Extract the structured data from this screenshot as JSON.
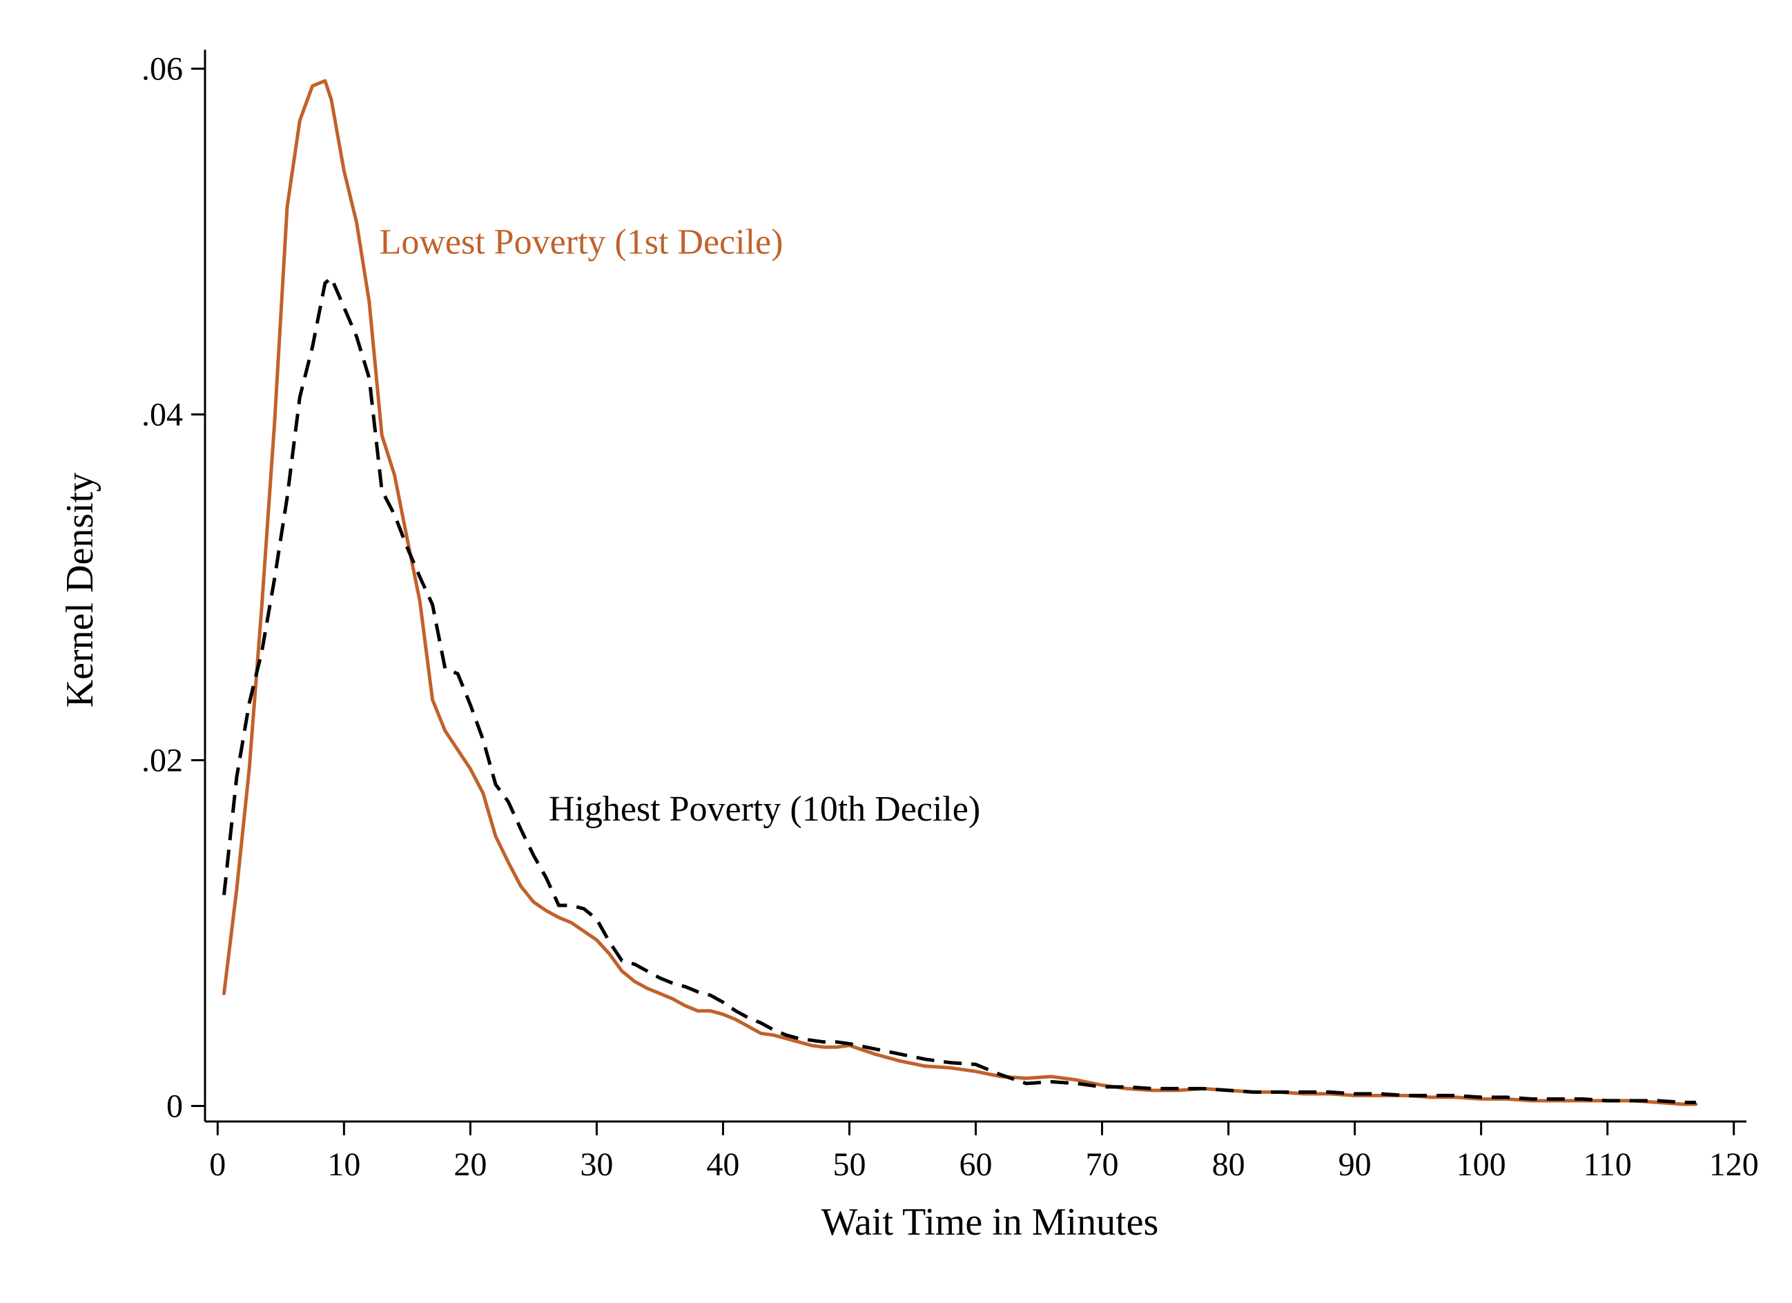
{
  "chart_data": {
    "type": "line",
    "title": "",
    "xlabel": "Wait Time in Minutes",
    "ylabel": "Kernel Density",
    "xlim": [
      -1,
      121
    ],
    "ylim": [
      -0.0009,
      0.0611
    ],
    "x_ticks": [
      0,
      10,
      20,
      30,
      40,
      50,
      60,
      70,
      80,
      90,
      100,
      110,
      120
    ],
    "x_tick_labels": [
      "0",
      "10",
      "20",
      "30",
      "40",
      "50",
      "60",
      "70",
      "80",
      "90",
      "100",
      "110",
      "120"
    ],
    "y_ticks": [
      0,
      0.02,
      0.04,
      0.06
    ],
    "y_tick_labels": [
      "0",
      ".02",
      ".04",
      ".06"
    ],
    "grid": false,
    "legend": "none",
    "series": [
      {
        "name": "Lowest Poverty (1st Decile)",
        "color": "#C0622A",
        "line_style": "solid",
        "x": [
          0.5,
          1.5,
          2.5,
          3.5,
          4.5,
          5.5,
          6.5,
          7.5,
          8.5,
          9.0,
          10.0,
          11.0,
          12.0,
          13.0,
          14.0,
          15.0,
          16.0,
          17.0,
          18.0,
          19.0,
          20.0,
          21.0,
          22.0,
          23.0,
          24.0,
          25.0,
          26.0,
          27.0,
          28.0,
          29.0,
          30.0,
          31.0,
          32.0,
          33.0,
          34.0,
          35.0,
          36.0,
          37.0,
          38.0,
          39.0,
          40.0,
          41.0,
          42.0,
          43.0,
          44.0,
          45.0,
          46.0,
          47.0,
          48.0,
          49.0,
          50.0,
          52.0,
          54.0,
          56.0,
          58.0,
          60.0,
          62.0,
          64.0,
          66.0,
          68.0,
          70.0,
          72.0,
          74.0,
          76.0,
          78.0,
          80.0,
          82.0,
          84.0,
          86.0,
          88.0,
          90.0,
          92.0,
          94.0,
          96.0,
          98.0,
          100.0,
          102.0,
          104.0,
          106.0,
          108.0,
          110.0,
          112.0,
          114.0,
          116.0,
          117.0
        ],
        "y": [
          0.0065,
          0.0125,
          0.0195,
          0.029,
          0.0395,
          0.052,
          0.057,
          0.059,
          0.0593,
          0.0582,
          0.0541,
          0.0511,
          0.0465,
          0.0388,
          0.0365,
          0.0328,
          0.0292,
          0.0235,
          0.0217,
          0.0206,
          0.0195,
          0.0181,
          0.0156,
          0.0141,
          0.0127,
          0.0118,
          0.0113,
          0.0109,
          0.0106,
          0.0101,
          0.0096,
          0.0088,
          0.0078,
          0.0072,
          0.0068,
          0.0065,
          0.0062,
          0.0058,
          0.0055,
          0.0055,
          0.0053,
          0.005,
          0.0046,
          0.0042,
          0.0041,
          0.0039,
          0.0037,
          0.0035,
          0.0034,
          0.0034,
          0.0035,
          0.003,
          0.0026,
          0.0023,
          0.0022,
          0.002,
          0.0017,
          0.0016,
          0.0017,
          0.0015,
          0.0012,
          0.001,
          0.0009,
          0.0009,
          0.001,
          0.0009,
          0.0008,
          0.0008,
          0.0007,
          0.0007,
          0.0006,
          0.0006,
          0.0006,
          0.0005,
          0.0005,
          0.0004,
          0.0004,
          0.0003,
          0.0003,
          0.0003,
          0.0003,
          0.0003,
          0.0002,
          0.0001,
          0.0001
        ]
      },
      {
        "name": "Highest Poverty (10th Decile)",
        "color": "#000000",
        "line_style": "dashed",
        "x": [
          0.5,
          1.5,
          2.5,
          3.5,
          4.5,
          5.5,
          6.5,
          7.5,
          8.5,
          9.0,
          10.0,
          11.0,
          12.0,
          13.0,
          14.0,
          15.0,
          16.0,
          17.0,
          18.0,
          19.0,
          20.0,
          21.0,
          22.0,
          23.0,
          24.0,
          25.0,
          26.0,
          27.0,
          28.0,
          29.0,
          30.0,
          31.0,
          32.0,
          33.0,
          34.0,
          35.0,
          36.0,
          37.0,
          38.0,
          39.0,
          40.0,
          41.0,
          42.0,
          43.0,
          44.0,
          45.0,
          46.0,
          47.0,
          48.0,
          49.0,
          50.0,
          52.0,
          54.0,
          56.0,
          58.0,
          60.0,
          62.0,
          64.0,
          66.0,
          68.0,
          70.0,
          72.0,
          74.0,
          76.0,
          78.0,
          80.0,
          82.0,
          84.0,
          86.0,
          88.0,
          90.0,
          92.0,
          94.0,
          96.0,
          98.0,
          100.0,
          102.0,
          104.0,
          106.0,
          108.0,
          110.0,
          112.0,
          114.0,
          116.0,
          117.0
        ],
        "y": [
          0.0122,
          0.019,
          0.0233,
          0.0263,
          0.0305,
          0.0352,
          0.041,
          0.0439,
          0.0476,
          0.0479,
          0.0462,
          0.0445,
          0.0421,
          0.0356,
          0.0342,
          0.0323,
          0.0306,
          0.029,
          0.0253,
          0.025,
          0.0232,
          0.0212,
          0.0186,
          0.0176,
          0.016,
          0.0145,
          0.0132,
          0.0116,
          0.0116,
          0.0114,
          0.0108,
          0.0095,
          0.0084,
          0.0082,
          0.0078,
          0.0074,
          0.0071,
          0.0069,
          0.0066,
          0.0064,
          0.006,
          0.0055,
          0.0051,
          0.0048,
          0.0044,
          0.0041,
          0.0039,
          0.0038,
          0.0037,
          0.0037,
          0.0036,
          0.0033,
          0.003,
          0.0027,
          0.0025,
          0.0024,
          0.0018,
          0.0013,
          0.0014,
          0.0013,
          0.0011,
          0.0011,
          0.001,
          0.001,
          0.001,
          0.0009,
          0.0008,
          0.0008,
          0.0008,
          0.0008,
          0.0007,
          0.0007,
          0.0006,
          0.0006,
          0.0006,
          0.0005,
          0.0005,
          0.0004,
          0.0004,
          0.0004,
          0.0003,
          0.0003,
          0.0003,
          0.0002,
          0.0002
        ]
      }
    ],
    "annotations": [
      {
        "text": "Lowest Poverty (1st Decile)",
        "x": 12.8,
        "y": 0.0493,
        "color": "#C0622A"
      },
      {
        "text": "Highest Poverty (10th Decile)",
        "x": 26.2,
        "y": 0.0165,
        "color": "#000000"
      }
    ]
  }
}
